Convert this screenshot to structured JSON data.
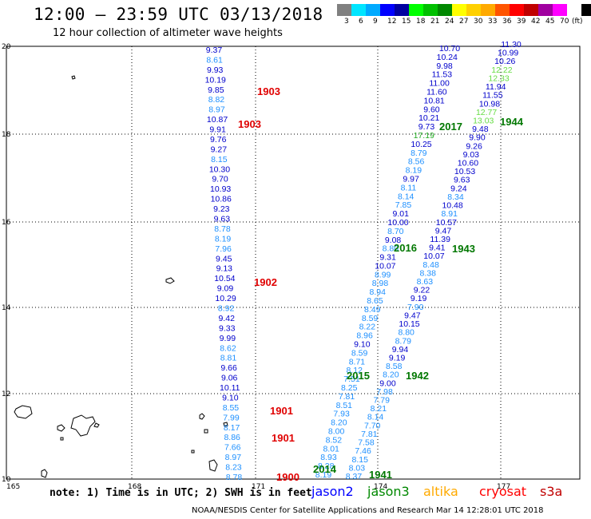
{
  "title": "12:00 – 23:59 UTC 03/13/2018",
  "subtitle": "12 hour collection of altimeter wave heights",
  "colorbar": {
    "colors": [
      "#808080",
      "#00e5ff",
      "#00aaff",
      "#0000ff",
      "#0000a0",
      "#00ff00",
      "#00c000",
      "#008800",
      "#ffff00",
      "#ffd000",
      "#ffaa00",
      "#ff5500",
      "#ff0000",
      "#c00000",
      "#a000a0",
      "#ff00ff",
      "#ffffff",
      "#000000"
    ],
    "tick_labels": [
      "3",
      "6",
      "9",
      "12",
      "15",
      "18",
      "21",
      "24",
      "27",
      "30",
      "33",
      "36",
      "39",
      "42",
      "45",
      "70",
      "(ft)"
    ]
  },
  "map": {
    "lon_ticks": [
      "165",
      "168",
      "171",
      "174",
      "177"
    ],
    "lat_ticks": [
      "20",
      "18",
      "16",
      "14",
      "12",
      "10"
    ]
  },
  "tracks": [
    {
      "label": "1903",
      "color": "#0000ff",
      "values": [
        "9.37",
        "8.61",
        "9.93",
        "10.19",
        "9.85",
        "8.82",
        "8.97",
        "10.87",
        "9.91",
        "9.76",
        "9.27",
        "8.15",
        "10.30",
        "9.70",
        "10.93",
        "10.86",
        "9.23",
        "9.63",
        "8.78",
        "8.19",
        "7.96",
        "9.45",
        "9.13",
        "10.54",
        "9.09",
        "10.29",
        "8.92",
        "9.42",
        "9.33",
        "9.99",
        "8.62",
        "8.81",
        "9.66",
        "9.06",
        "10.11",
        "9.10",
        "8.55",
        "7.99",
        "8.17",
        "8.86",
        "7.66",
        "8.97",
        "8.23",
        "8.78"
      ]
    },
    {
      "label": "2017",
      "color": "#0000ff",
      "values": [
        "10.70",
        "10.24",
        "9.98",
        "11.53",
        "11.00",
        "11.60",
        "10.81",
        "9.60",
        "10.21",
        "9.73",
        "17.19",
        "10.25",
        "8.79",
        "8.56",
        "8.19",
        "9.97",
        "8.11",
        "8.14",
        "7.85",
        "9.01",
        "10.00",
        "8.70",
        "9.08",
        "8.80",
        "9.31",
        "10.07",
        "8.99",
        "8.98",
        "8.94",
        "8.65",
        "8.49",
        "8.59",
        "8.22",
        "8.96",
        "9.10",
        "8.59",
        "8.71",
        "8.12",
        "7.51",
        "8.25",
        "7.81",
        "8.51",
        "7.93",
        "8.20",
        "8.00",
        "8.52",
        "8.01",
        "8.93",
        "8.28",
        "8.19"
      ]
    },
    {
      "label": "1944",
      "color": "#0000ff",
      "values": [
        "11.30",
        "10.99",
        "10.26",
        "12.22",
        "12.33",
        "11.94",
        "11.55",
        "10.98",
        "12.77",
        "13.03",
        "9.48",
        "9.90",
        "9.26",
        "9.03",
        "10.60",
        "10.53",
        "9.63",
        "9.24",
        "8.34",
        "10.48",
        "8.91",
        "10.57",
        "9.47",
        "11.39",
        "9.41",
        "10.07",
        "8.48",
        "8.38",
        "8.63",
        "9.22",
        "9.19",
        "7.90",
        "9.47",
        "10.15",
        "8.80",
        "8.79",
        "9.94",
        "9.19",
        "8.58",
        "8.20",
        "9.00",
        "7.98",
        "7.79",
        "8.21",
        "8.14",
        "7.70",
        "7.81",
        "7.58",
        "7.46",
        "8.15",
        "8.03",
        "8.37"
      ]
    }
  ],
  "pass_labels": [
    "1903",
    "1903",
    "1902",
    "1901",
    "1901",
    "1900",
    "2017",
    "2016",
    "2015",
    "2014",
    "1944",
    "1943",
    "1942",
    "1941"
  ],
  "note": "note: 1) Time is in UTC; 2) SWH is in feet",
  "legend": [
    {
      "name": "jason2",
      "color": "#0000ff"
    },
    {
      "name": "jason3",
      "color": "#008800"
    },
    {
      "name": "altika",
      "color": "#ffaa00"
    },
    {
      "name": "cryosat",
      "color": "#ff0000"
    },
    {
      "name": "s3a",
      "color": "#c00000"
    }
  ],
  "footer": "NOAA/NESDIS Center for Satellite Applications and Research     Mar 14 12:28:01 UTC 2018"
}
